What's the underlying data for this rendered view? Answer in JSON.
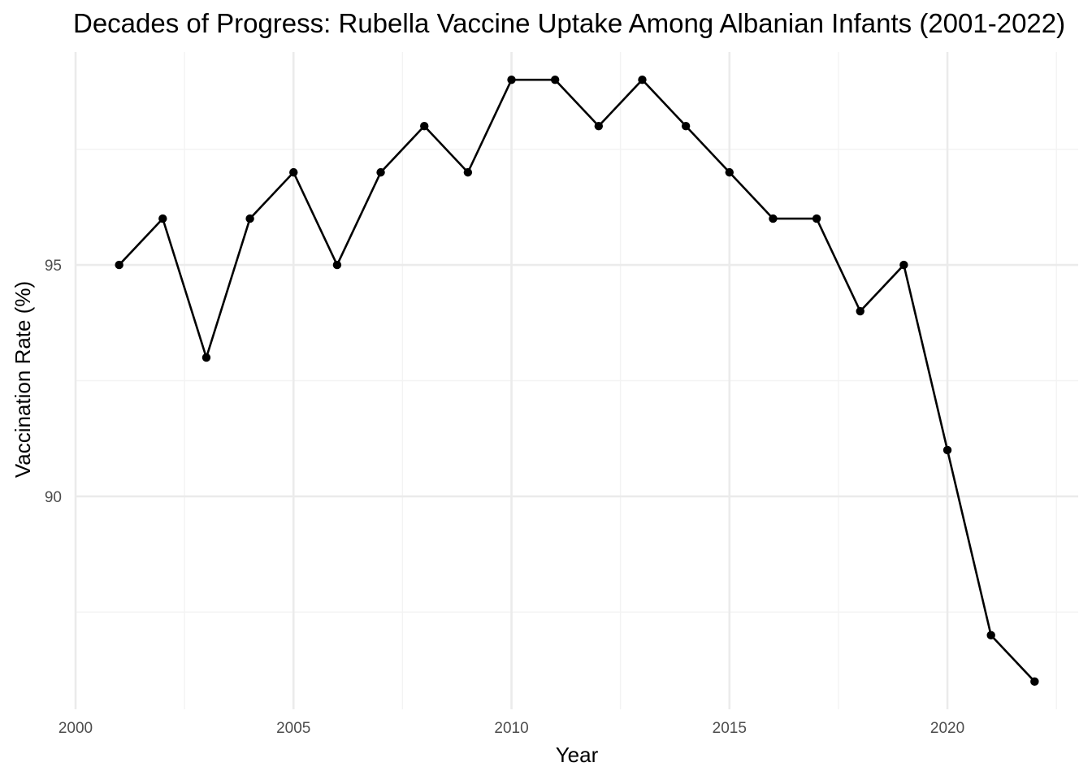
{
  "chart_data": {
    "type": "line",
    "title": "Decades of Progress: Rubella Vaccine Uptake Among Albanian Infants (2001-2022)",
    "xlabel": "Year",
    "ylabel": "Vaccination Rate (%)",
    "x": [
      2001,
      2002,
      2003,
      2004,
      2005,
      2006,
      2007,
      2008,
      2009,
      2010,
      2011,
      2012,
      2013,
      2014,
      2015,
      2016,
      2017,
      2018,
      2019,
      2020,
      2021,
      2022
    ],
    "series": [
      {
        "values": [
          95,
          96,
          93,
          96,
          97,
          95,
          97,
          98,
          97,
          99,
          99,
          98,
          99,
          98,
          97,
          96,
          96,
          94,
          95,
          91,
          87,
          86
        ]
      }
    ],
    "xlim": [
      2000,
      2023
    ],
    "ylim": [
      85.4,
      99.6
    ],
    "x_ticks": [
      2000,
      2005,
      2010,
      2015,
      2020
    ],
    "x_tick_labels": [
      "2000",
      "2005",
      "2010",
      "2015",
      "2020"
    ],
    "y_ticks": [
      90,
      95
    ],
    "y_tick_labels": [
      "90",
      "95"
    ],
    "grid": true,
    "legend": "none",
    "colors": {
      "line": "#000000",
      "points": "#000000",
      "grid_major": "#ebebeb",
      "grid_minor": "#f3f3f3",
      "tick_text": "#4d4d4d"
    }
  }
}
